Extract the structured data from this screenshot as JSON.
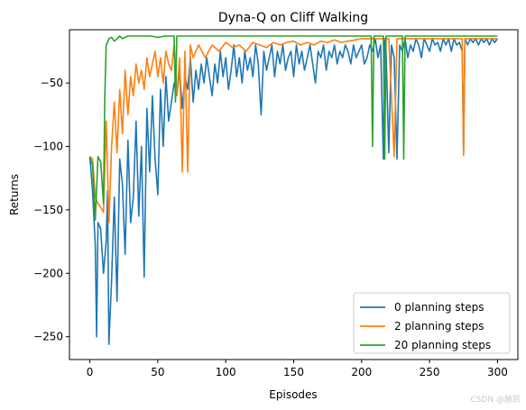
{
  "chart_data": {
    "type": "line",
    "title": "Dyna-Q on Cliff Walking",
    "xlabel": "Episodes",
    "ylabel": "Returns",
    "xlim": [
      -15,
      315
    ],
    "ylim": [
      -268,
      -8
    ],
    "xticks": [
      0,
      50,
      100,
      150,
      200,
      250,
      300
    ],
    "yticks": [
      -250,
      -200,
      -150,
      -100,
      -50
    ],
    "ytick_labels": [
      "−250",
      "−200",
      "−150",
      "−100",
      "−50"
    ],
    "grid": false,
    "legend_position": "lower-right",
    "series": [
      {
        "name": "0 planning steps",
        "color": "#1f77b4",
        "x": [
          0,
          2,
          4,
          5,
          6,
          8,
          10,
          12,
          13,
          14,
          16,
          18,
          20,
          22,
          24,
          26,
          28,
          30,
          32,
          34,
          36,
          38,
          40,
          42,
          44,
          46,
          48,
          50,
          52,
          54,
          56,
          58,
          60,
          62,
          64,
          66,
          68,
          70,
          72,
          74,
          76,
          78,
          80,
          82,
          84,
          86,
          88,
          90,
          92,
          94,
          96,
          98,
          100,
          102,
          104,
          106,
          108,
          110,
          112,
          114,
          116,
          118,
          120,
          122,
          124,
          126,
          128,
          130,
          132,
          134,
          136,
          138,
          140,
          142,
          144,
          146,
          148,
          150,
          152,
          154,
          156,
          158,
          160,
          162,
          164,
          166,
          168,
          170,
          172,
          174,
          176,
          178,
          180,
          182,
          184,
          186,
          188,
          190,
          192,
          194,
          196,
          198,
          200,
          202,
          204,
          206,
          208,
          210,
          212,
          214,
          216,
          217,
          218,
          220,
          222,
          224,
          226,
          228,
          230,
          232,
          234,
          236,
          238,
          240,
          242,
          244,
          246,
          248,
          250,
          252,
          254,
          256,
          258,
          260,
          262,
          264,
          266,
          268,
          270,
          272,
          274,
          275,
          276,
          278,
          280,
          282,
          284,
          286,
          288,
          290,
          292,
          294,
          296,
          298,
          300
        ],
        "y": [
          -108,
          -135,
          -178,
          -250,
          -160,
          -165,
          -200,
          -175,
          -135,
          -256,
          -205,
          -140,
          -222,
          -110,
          -130,
          -185,
          -95,
          -160,
          -140,
          -80,
          -155,
          -100,
          -203,
          -70,
          -120,
          -60,
          -110,
          -138,
          -55,
          -100,
          -45,
          -80,
          -65,
          -50,
          -60,
          -40,
          -70,
          -45,
          -55,
          -30,
          -65,
          -40,
          -55,
          -35,
          -50,
          -30,
          -45,
          -60,
          -35,
          -50,
          -25,
          -45,
          -30,
          -55,
          -40,
          -20,
          -45,
          -30,
          -50,
          -25,
          -40,
          -30,
          -45,
          -20,
          -35,
          -75,
          -25,
          -40,
          -30,
          -20,
          -45,
          -25,
          -35,
          -20,
          -40,
          -30,
          -25,
          -45,
          -20,
          -35,
          -25,
          -40,
          -30,
          -20,
          -35,
          -50,
          -25,
          -30,
          -20,
          -40,
          -25,
          -30,
          -20,
          -35,
          -25,
          -30,
          -20,
          -25,
          -35,
          -20,
          -30,
          -25,
          -20,
          -35,
          -30,
          -20,
          -25,
          -15,
          -30,
          -20,
          -110,
          -15,
          -25,
          -105,
          -20,
          -30,
          -110,
          -20,
          -25,
          -15,
          -30,
          -20,
          -25,
          -15,
          -20,
          -30,
          -15,
          -20,
          -25,
          -15,
          -20,
          -18,
          -25,
          -15,
          -20,
          -15,
          -25,
          -15,
          -20,
          -18,
          -25,
          -105,
          -15,
          -20,
          -15,
          -18,
          -15,
          -20,
          -15,
          -18,
          -15,
          -20,
          -15,
          -18,
          -15
        ]
      },
      {
        "name": "2 planning steps",
        "color": "#ff7f0e",
        "x": [
          0,
          2,
          4,
          6,
          8,
          10,
          12,
          14,
          16,
          18,
          20,
          22,
          24,
          26,
          28,
          30,
          32,
          34,
          36,
          38,
          40,
          42,
          44,
          46,
          48,
          50,
          52,
          54,
          56,
          58,
          60,
          62,
          64,
          66,
          68,
          70,
          72,
          74,
          76,
          78,
          80,
          85,
          90,
          95,
          100,
          105,
          110,
          115,
          120,
          125,
          130,
          135,
          140,
          145,
          150,
          155,
          160,
          165,
          170,
          175,
          180,
          185,
          190,
          195,
          200,
          210,
          220,
          224,
          226,
          230,
          240,
          250,
          260,
          270,
          274,
          275,
          276,
          278,
          280,
          290,
          300
        ],
        "y": [
          -108,
          -110,
          -140,
          -145,
          -148,
          -152,
          -80,
          -160,
          -100,
          -65,
          -105,
          -55,
          -90,
          -40,
          -75,
          -45,
          -60,
          -35,
          -50,
          -40,
          -55,
          -30,
          -45,
          -35,
          -25,
          -45,
          -30,
          -50,
          -25,
          -35,
          -40,
          -20,
          -60,
          -30,
          -120,
          -25,
          -120,
          -20,
          -30,
          -25,
          -20,
          -30,
          -20,
          -25,
          -18,
          -22,
          -20,
          -25,
          -18,
          -20,
          -22,
          -18,
          -20,
          -18,
          -17,
          -20,
          -18,
          -20,
          -17,
          -18,
          -16,
          -18,
          -17,
          -16,
          -15,
          -15,
          -15,
          -108,
          -15,
          -15,
          -15,
          -15,
          -15,
          -15,
          -15,
          -107,
          -15,
          -15,
          -15,
          -15,
          -15
        ]
      },
      {
        "name": "20 planning steps",
        "color": "#2ca02c",
        "x": [
          0,
          2,
          4,
          6,
          8,
          10,
          11,
          12,
          13,
          14,
          16,
          18,
          20,
          22,
          24,
          26,
          28,
          30,
          35,
          40,
          45,
          50,
          55,
          60,
          62,
          63,
          64,
          66,
          70,
          80,
          100,
          150,
          200,
          207,
          208,
          209,
          210,
          216,
          217,
          218,
          220,
          228,
          230,
          231,
          232,
          240,
          260,
          280,
          290,
          300
        ],
        "y": [
          -108,
          -115,
          -158,
          -108,
          -112,
          -145,
          -60,
          -20,
          -18,
          -15,
          -14,
          -17,
          -15,
          -13,
          -15,
          -14,
          -13,
          -13,
          -13,
          -13,
          -13,
          -14,
          -13,
          -13,
          -13,
          -65,
          -13,
          -13,
          -13,
          -13,
          -13,
          -13,
          -13,
          -13,
          -100,
          -13,
          -13,
          -13,
          -110,
          -13,
          -13,
          -13,
          -13,
          -110,
          -13,
          -13,
          -13,
          -13,
          -13,
          -13
        ]
      }
    ]
  },
  "watermark": "CSDN @赫凯"
}
